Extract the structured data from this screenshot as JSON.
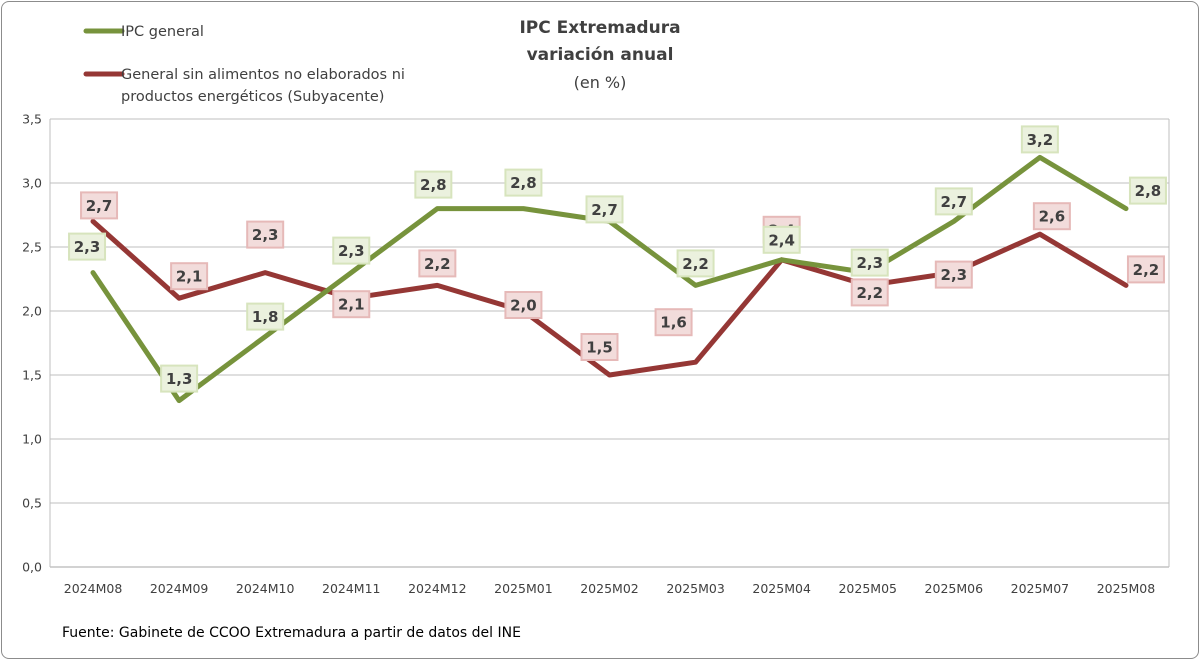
{
  "chart_data": {
    "type": "line",
    "title": "IPC Extremadura",
    "title_line2": "variación anual",
    "subtitle": "(en %)",
    "categories": [
      "2024M08",
      "2024M09",
      "2024M10",
      "2024M11",
      "2024M12",
      "2025M01",
      "2025M02",
      "2025M03",
      "2025M04",
      "2025M05",
      "2025M06",
      "2025M07",
      "2025M08"
    ],
    "series": [
      {
        "name": "IPC general",
        "values": [
          2.3,
          1.3,
          1.8,
          2.3,
          2.8,
          2.8,
          2.7,
          2.2,
          2.4,
          2.3,
          2.7,
          3.2,
          2.8
        ],
        "labels": [
          "2,3",
          "1,3",
          "1,8",
          "2,3",
          "2,8",
          "2,8",
          "2,7",
          "2,2",
          "2,4",
          "2,3",
          "2,7",
          "3,2",
          "2,8"
        ],
        "color": "#77933c",
        "label_fill": "#ebf1de",
        "label_stroke": "#d7e4bd"
      },
      {
        "name_lines": [
          "General sin alimentos no elaborados ni",
          "productos energéticos (Subyacente)"
        ],
        "values": [
          2.7,
          2.1,
          2.3,
          2.1,
          2.2,
          2.0,
          1.5,
          1.6,
          2.4,
          2.2,
          2.3,
          2.6,
          2.2
        ],
        "labels": [
          "2,7",
          "2,1",
          "2,3",
          "2,1",
          "2,2",
          "2,0",
          "1,5",
          "1,6",
          "2,4",
          "2,2",
          "2,3",
          "2,6",
          "2,2"
        ],
        "color": "#953735",
        "label_fill": "#f2dcdb",
        "label_stroke": "#e6b9b8"
      }
    ],
    "ylim": [
      0,
      3.5
    ],
    "yticks": [
      0,
      0.5,
      1.0,
      1.5,
      2.0,
      2.5,
      3.0,
      3.5
    ],
    "ytick_labels": [
      "0,0",
      "0,5",
      "1,0",
      "1,5",
      "2,0",
      "2,5",
      "3,0",
      "3,5"
    ],
    "grid": true,
    "legend_position": "top-left"
  },
  "source_text": "Fuente: Gabinete de CCOO Extremadura a partir de datos del INE"
}
